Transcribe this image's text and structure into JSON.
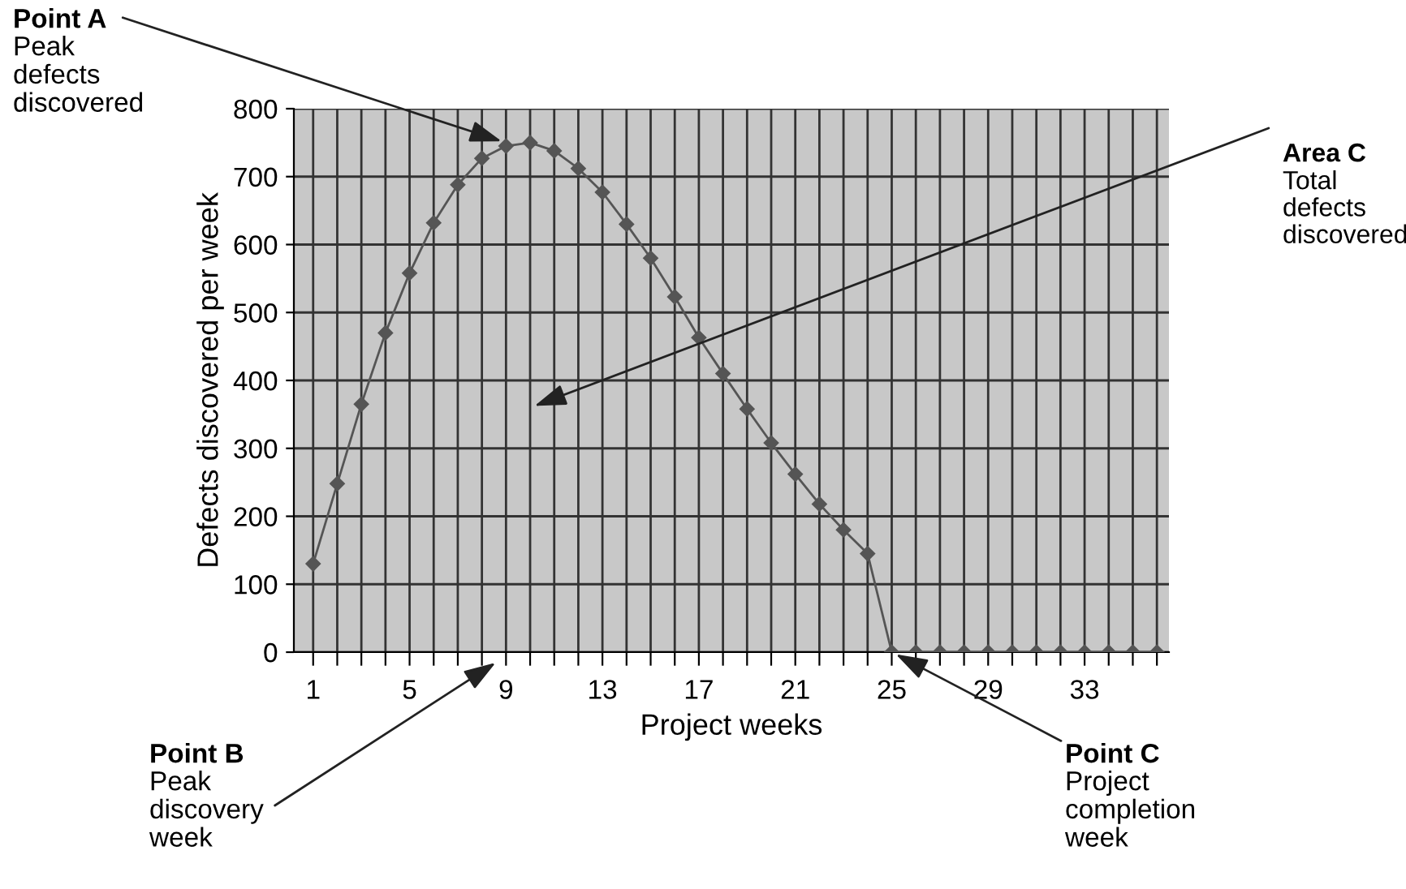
{
  "chart_data": {
    "type": "line",
    "xlabel": "Project weeks",
    "ylabel": "Defects discovered per week",
    "categories": [
      "1",
      null,
      null,
      null,
      "5",
      null,
      null,
      null,
      "9",
      null,
      null,
      null,
      "13",
      null,
      null,
      null,
      "17",
      null,
      null,
      null,
      "21",
      null,
      null,
      null,
      "25",
      null,
      null,
      null,
      "29",
      null,
      null,
      null,
      "33",
      null,
      null,
      null
    ],
    "series": [
      {
        "color": "#555555",
        "values": [
          130,
          248,
          365,
          470,
          558,
          632,
          688,
          727,
          745,
          750,
          738,
          712,
          677,
          630,
          580,
          523,
          463,
          410,
          358,
          308,
          262,
          218,
          180,
          145,
          0,
          0,
          0,
          0,
          0,
          0,
          0,
          0,
          0,
          0,
          0,
          0
        ]
      }
    ],
    "ylim": [
      0,
      800
    ],
    "yticks": [
      0,
      100,
      200,
      300,
      400,
      500,
      600,
      700,
      800
    ],
    "grid": true,
    "marker": "diamond",
    "line_style": "solid",
    "annotations": [
      {
        "text": "Point A\nPeak\ndefects\ndiscovered",
        "x": "9",
        "y": 750
      },
      "Area C\nTotal\ndefects\ndiscovered",
      "Point B\nPeak\ndiscovery\nweek",
      {
        "text": "Point C\nProject\ncompletion\nweek",
        "x": "25",
        "y": 0
      }
    ]
  }
}
